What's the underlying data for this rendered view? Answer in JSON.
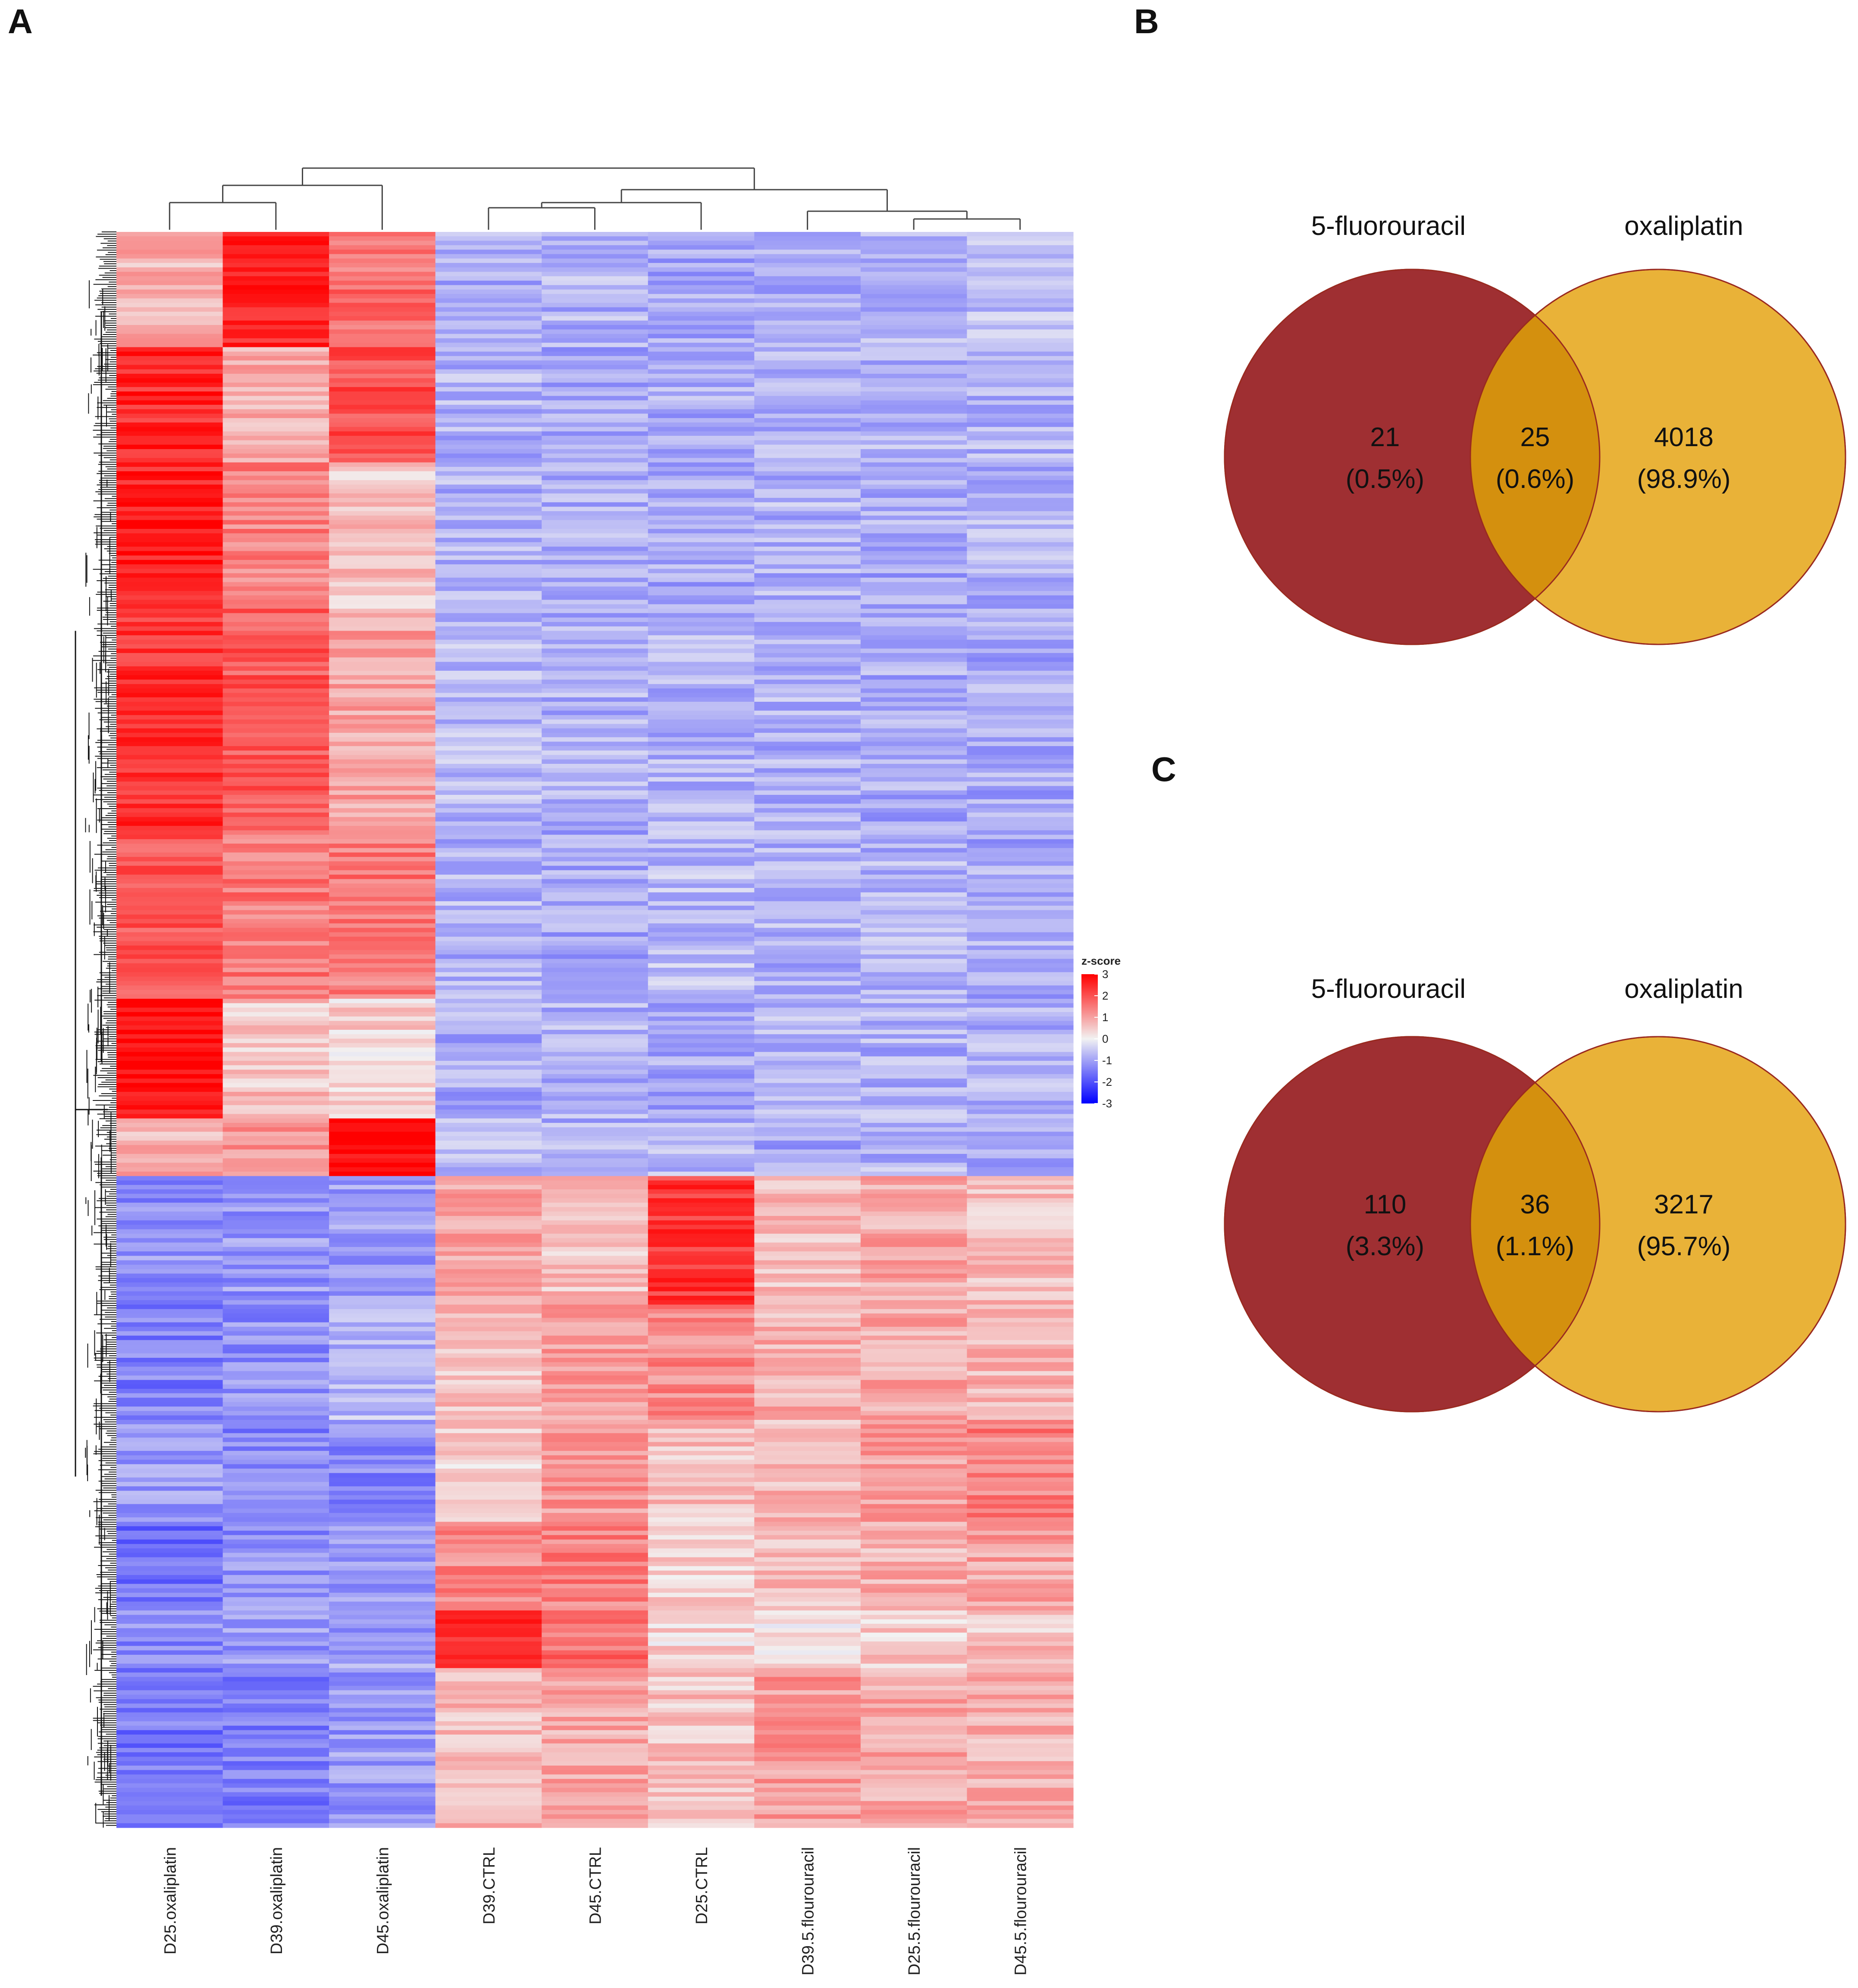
{
  "panels": {
    "a": "A",
    "b": "B",
    "c": "C"
  },
  "heatmap": {
    "samples": [
      "D25.oxaliplatin",
      "D39.oxaliplatin",
      "D45.oxaliplatin",
      "D39.CTRL",
      "D45.CTRL",
      "D25.CTRL",
      "D39.5.flourouracil",
      "D25.5.flourouracil",
      "D45.5.flourouracil"
    ],
    "legend_title": "z-score",
    "legend_ticks": [
      "3",
      "2",
      "1",
      "0",
      "-1",
      "-2",
      "-3"
    ],
    "colors": {
      "high": "#ff0000",
      "mid": "#f2f2f2",
      "low": "#0000ff"
    },
    "row_blocks": [
      {
        "rows": 0.08,
        "z": [
          0.8,
          2.6,
          1.6,
          -0.9,
          -0.8,
          -0.9,
          -0.8,
          -0.8,
          -0.7
        ]
      },
      {
        "rows": 0.08,
        "z": [
          2.5,
          0.9,
          2.0,
          -0.8,
          -0.9,
          -0.9,
          -0.8,
          -0.8,
          -0.8
        ]
      },
      {
        "rows": 0.1,
        "z": [
          2.6,
          1.4,
          0.6,
          -0.8,
          -0.8,
          -0.9,
          -0.8,
          -0.9,
          -0.8
        ]
      },
      {
        "rows": 0.15,
        "z": [
          2.4,
          1.9,
          1.0,
          -0.7,
          -0.8,
          -0.8,
          -0.8,
          -0.9,
          -0.9
        ]
      },
      {
        "rows": 0.12,
        "z": [
          2.0,
          1.5,
          1.5,
          -0.8,
          -0.9,
          -0.7,
          -0.8,
          -0.8,
          -0.9
        ]
      },
      {
        "rows": 0.08,
        "z": [
          2.9,
          0.6,
          0.4,
          -0.9,
          -0.8,
          -0.9,
          -0.8,
          -0.8,
          -0.8
        ]
      },
      {
        "rows": 0.04,
        "z": [
          0.8,
          1.2,
          3.0,
          -0.7,
          -0.8,
          -0.8,
          -0.9,
          -0.8,
          -0.9
        ]
      },
      {
        "rows": 0.09,
        "z": [
          -1.2,
          -1.1,
          -1.0,
          1.0,
          0.6,
          2.3,
          0.7,
          0.9,
          0.6
        ]
      },
      {
        "rows": 0.08,
        "z": [
          -1.4,
          -1.2,
          -0.7,
          0.6,
          1.0,
          1.3,
          0.8,
          0.9,
          0.7
        ]
      },
      {
        "rows": 0.07,
        "z": [
          -1.1,
          -1.3,
          -1.3,
          0.4,
          1.1,
          0.6,
          0.7,
          1.0,
          1.4
        ]
      },
      {
        "rows": 0.06,
        "z": [
          -1.6,
          -1.2,
          -1.2,
          1.3,
          1.4,
          0.5,
          0.6,
          0.8,
          1.0
        ]
      },
      {
        "rows": 0.04,
        "z": [
          -1.3,
          -1.1,
          -1.0,
          2.5,
          1.6,
          0.4,
          0.3,
          0.5,
          0.6
        ]
      },
      {
        "rows": 0.11,
        "z": [
          -1.5,
          -1.4,
          -1.1,
          0.7,
          0.9,
          0.6,
          1.1,
          0.9,
          0.8
        ]
      }
    ]
  },
  "venn_b": {
    "left_label": "5-fluorouracil",
    "right_label": "oxaliplatin",
    "left_count": "21",
    "left_pct": "(0.5%)",
    "both_count": "25",
    "both_pct": "(0.6%)",
    "right_count": "4018",
    "right_pct": "(98.9%)",
    "colors": {
      "left": "#9f2f32",
      "right": "#e9b238",
      "overlap": "#d4900e"
    }
  },
  "venn_c": {
    "left_label": "5-fluorouracil",
    "right_label": "oxaliplatin",
    "left_count": "110",
    "left_pct": "(3.3%)",
    "both_count": "36",
    "both_pct": "(1.1%)",
    "right_count": "3217",
    "right_pct": "(95.7%)",
    "colors": {
      "left": "#9f2f32",
      "right": "#e9b238",
      "overlap": "#d4900e"
    }
  },
  "chart_data": [
    {
      "type": "heatmap",
      "title": "",
      "columns": [
        "D25.oxaliplatin",
        "D39.oxaliplatin",
        "D45.oxaliplatin",
        "D39.CTRL",
        "D45.CTRL",
        "D25.CTRL",
        "D39.5.flourouracil",
        "D25.5.flourouracil",
        "D45.5.flourouracil"
      ],
      "color_scale": {
        "label": "z-score",
        "min": -3,
        "max": 3
      }
    },
    {
      "type": "venn",
      "sets": [
        "5-fluorouracil",
        "oxaliplatin"
      ],
      "values": {
        "5-fluorouracil_only": 21,
        "both": 25,
        "oxaliplatin_only": 4018
      },
      "percent": {
        "5-fluorouracil_only": 0.5,
        "both": 0.6,
        "oxaliplatin_only": 98.9
      }
    },
    {
      "type": "venn",
      "sets": [
        "5-fluorouracil",
        "oxaliplatin"
      ],
      "values": {
        "5-fluorouracil_only": 110,
        "both": 36,
        "oxaliplatin_only": 3217
      },
      "percent": {
        "5-fluorouracil_only": 3.3,
        "both": 1.1,
        "oxaliplatin_only": 95.7
      }
    }
  ]
}
